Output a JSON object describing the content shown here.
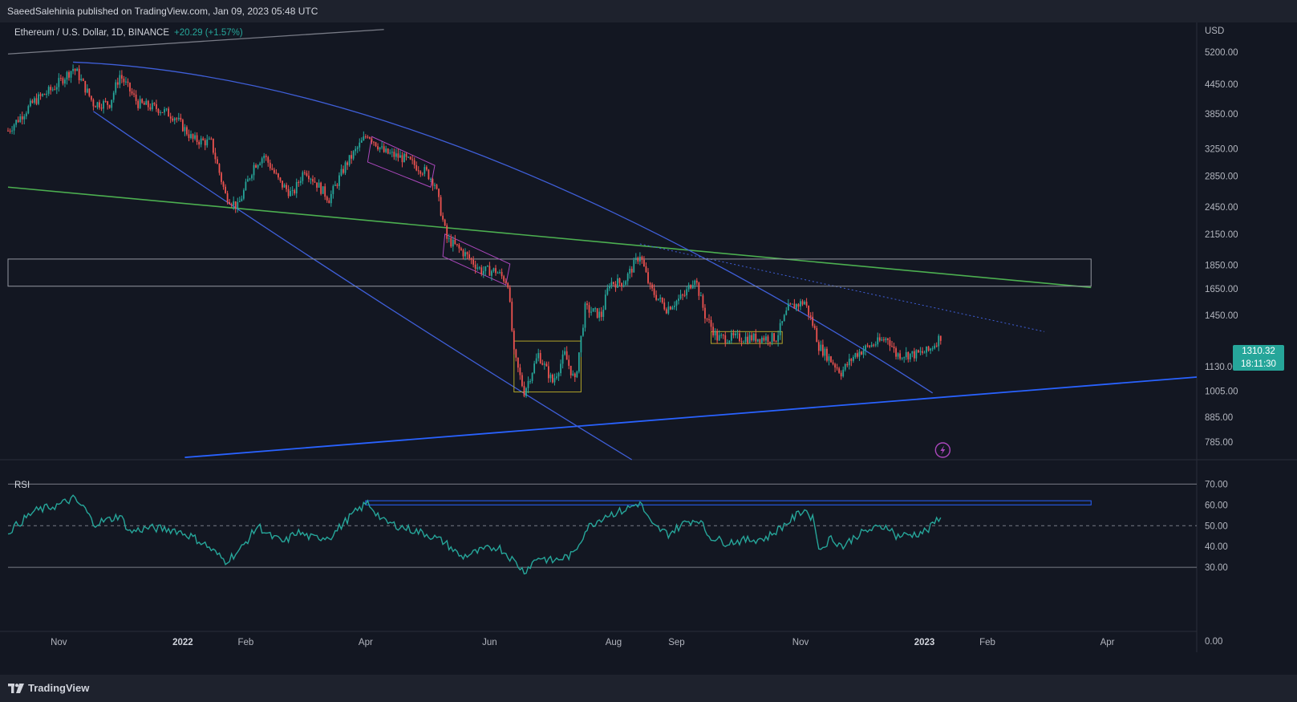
{
  "header": {
    "publisher_line": "SaeedSalehinia published on TradingView.com, Jan 09, 2023 05:48 UTC"
  },
  "legend": {
    "symbol": "Ethereum / U.S. Dollar, 1D, BINANCE",
    "change": "+20.29 (+1.57%)"
  },
  "footer": {
    "brand": "TradingView"
  },
  "price_tag": {
    "price": "1310.32",
    "countdown": "18:11:30"
  },
  "colors": {
    "background": "#131722",
    "up": "#26a69a",
    "down": "#ef5350",
    "rsi": "#26a69a",
    "accent_blue": "#2962ff",
    "green_line": "#4caf50"
  },
  "icons": [
    "lightning-icon",
    "tradingview-logo-icon"
  ],
  "chart_data": [
    {
      "type": "candlestick",
      "title": "Ethereum / U.S. Dollar, 1D, BINANCE",
      "ylabel": "USD",
      "y_scale": "log",
      "ylim": [
        720,
        6000
      ],
      "y_ticks": [
        "5200.00",
        "4450.00",
        "3850.00",
        "3250.00",
        "2850.00",
        "2450.00",
        "2150.00",
        "1850.00",
        "1650.00",
        "1450.00",
        "1130.00",
        "1005.00",
        "885.00",
        "785.00"
      ],
      "x_ticks": [
        {
          "label": "Nov",
          "date": "2021-11-01",
          "bold": false
        },
        {
          "label": "2022",
          "date": "2022-01-01",
          "bold": true
        },
        {
          "label": "Feb",
          "date": "2022-02-01",
          "bold": false
        },
        {
          "label": "Apr",
          "date": "2022-04-01",
          "bold": false
        },
        {
          "label": "Jun",
          "date": "2022-06-01",
          "bold": false
        },
        {
          "label": "Aug",
          "date": "2022-08-01",
          "bold": false
        },
        {
          "label": "Sep",
          "date": "2022-09-01",
          "bold": false
        },
        {
          "label": "Nov",
          "date": "2022-11-01",
          "bold": false
        },
        {
          "label": "2023",
          "date": "2023-01-01",
          "bold": true
        },
        {
          "label": "Feb",
          "date": "2023-02-01",
          "bold": false
        },
        {
          "label": "Apr",
          "date": "2023-04-01",
          "bold": false
        }
      ],
      "x_range": [
        "2021-10-07",
        "2023-05-15"
      ],
      "close_series": [
        {
          "date": "2021-10-07",
          "close": 3550
        },
        {
          "date": "2021-10-20",
          "close": 4100
        },
        {
          "date": "2021-10-29",
          "close": 4350
        },
        {
          "date": "2021-11-08",
          "close": 4800
        },
        {
          "date": "2021-11-10",
          "close": 4700
        },
        {
          "date": "2021-11-18",
          "close": 4050
        },
        {
          "date": "2021-11-26",
          "close": 4050
        },
        {
          "date": "2021-12-01",
          "close": 4650
        },
        {
          "date": "2021-12-10",
          "close": 4050
        },
        {
          "date": "2021-12-20",
          "close": 3950
        },
        {
          "date": "2021-12-28",
          "close": 3800
        },
        {
          "date": "2022-01-06",
          "close": 3400
        },
        {
          "date": "2022-01-15",
          "close": 3350
        },
        {
          "date": "2022-01-22",
          "close": 2600
        },
        {
          "date": "2022-01-28",
          "close": 2450
        },
        {
          "date": "2022-02-05",
          "close": 3000
        },
        {
          "date": "2022-02-10",
          "close": 3150
        },
        {
          "date": "2022-02-18",
          "close": 2750
        },
        {
          "date": "2022-02-24",
          "close": 2600
        },
        {
          "date": "2022-03-02",
          "close": 2950
        },
        {
          "date": "2022-03-14",
          "close": 2550
        },
        {
          "date": "2022-03-22",
          "close": 3000
        },
        {
          "date": "2022-04-02",
          "close": 3500
        },
        {
          "date": "2022-04-10",
          "close": 3200
        },
        {
          "date": "2022-04-20",
          "close": 3100
        },
        {
          "date": "2022-05-01",
          "close": 2900
        },
        {
          "date": "2022-05-05",
          "close": 2750
        },
        {
          "date": "2022-05-11",
          "close": 2100
        },
        {
          "date": "2022-05-20",
          "close": 1950
        },
        {
          "date": "2022-05-28",
          "close": 1800
        },
        {
          "date": "2022-06-04",
          "close": 1800
        },
        {
          "date": "2022-06-10",
          "close": 1700
        },
        {
          "date": "2022-06-13",
          "close": 1200
        },
        {
          "date": "2022-06-18",
          "close": 1000
        },
        {
          "date": "2022-06-25",
          "close": 1200
        },
        {
          "date": "2022-07-02",
          "close": 1050
        },
        {
          "date": "2022-07-08",
          "close": 1200
        },
        {
          "date": "2022-07-13",
          "close": 1050
        },
        {
          "date": "2022-07-18",
          "close": 1500
        },
        {
          "date": "2022-07-26",
          "close": 1450
        },
        {
          "date": "2022-07-30",
          "close": 1700
        },
        {
          "date": "2022-08-06",
          "close": 1700
        },
        {
          "date": "2022-08-14",
          "close": 1950
        },
        {
          "date": "2022-08-19",
          "close": 1650
        },
        {
          "date": "2022-08-27",
          "close": 1500
        },
        {
          "date": "2022-09-05",
          "close": 1600
        },
        {
          "date": "2022-09-10",
          "close": 1750
        },
        {
          "date": "2022-09-15",
          "close": 1450
        },
        {
          "date": "2022-09-21",
          "close": 1300
        },
        {
          "date": "2022-10-01",
          "close": 1300
        },
        {
          "date": "2022-10-10",
          "close": 1300
        },
        {
          "date": "2022-10-20",
          "close": 1300
        },
        {
          "date": "2022-10-26",
          "close": 1500
        },
        {
          "date": "2022-11-03",
          "close": 1550
        },
        {
          "date": "2022-11-08",
          "close": 1350
        },
        {
          "date": "2022-11-10",
          "close": 1250
        },
        {
          "date": "2022-11-21",
          "close": 1100
        },
        {
          "date": "2022-11-28",
          "close": 1200
        },
        {
          "date": "2022-12-05",
          "close": 1250
        },
        {
          "date": "2022-12-14",
          "close": 1300
        },
        {
          "date": "2022-12-18",
          "close": 1200
        },
        {
          "date": "2022-12-28",
          "close": 1200
        },
        {
          "date": "2023-01-03",
          "close": 1220
        },
        {
          "date": "2023-01-09",
          "close": 1310
        }
      ],
      "last_price": 1310.32
    },
    {
      "type": "line",
      "title": "RSI",
      "ylim": [
        0,
        74
      ],
      "y_ticks": [
        "70.00",
        "60.00",
        "50.00",
        "40.00",
        "30.00",
        "0.00"
      ],
      "bands": {
        "upper": 70,
        "middle": 50,
        "lower": 30
      },
      "series": [
        {
          "points": [
            {
              "date": "2021-10-07",
              "value": 47
            },
            {
              "date": "2021-10-20",
              "value": 57
            },
            {
              "date": "2021-11-01",
              "value": 60
            },
            {
              "date": "2021-11-08",
              "value": 63
            },
            {
              "date": "2021-11-14",
              "value": 58
            },
            {
              "date": "2021-11-18",
              "value": 51
            },
            {
              "date": "2021-11-26",
              "value": 53
            },
            {
              "date": "2021-12-01",
              "value": 55
            },
            {
              "date": "2021-12-06",
              "value": 47
            },
            {
              "date": "2021-12-15",
              "value": 49
            },
            {
              "date": "2021-12-28",
              "value": 48
            },
            {
              "date": "2022-01-05",
              "value": 45
            },
            {
              "date": "2022-01-12",
              "value": 41
            },
            {
              "date": "2022-01-22",
              "value": 33
            },
            {
              "date": "2022-01-29",
              "value": 38
            },
            {
              "date": "2022-02-07",
              "value": 50
            },
            {
              "date": "2022-02-13",
              "value": 45
            },
            {
              "date": "2022-02-20",
              "value": 42
            },
            {
              "date": "2022-02-26",
              "value": 47
            },
            {
              "date": "2022-03-06",
              "value": 44
            },
            {
              "date": "2022-03-15",
              "value": 45
            },
            {
              "date": "2022-03-25",
              "value": 55
            },
            {
              "date": "2022-04-02",
              "value": 61
            },
            {
              "date": "2022-04-10",
              "value": 52
            },
            {
              "date": "2022-04-20",
              "value": 49
            },
            {
              "date": "2022-05-01",
              "value": 46
            },
            {
              "date": "2022-05-10",
              "value": 42
            },
            {
              "date": "2022-05-18",
              "value": 35
            },
            {
              "date": "2022-05-28",
              "value": 38
            },
            {
              "date": "2022-06-05",
              "value": 40
            },
            {
              "date": "2022-06-10",
              "value": 36
            },
            {
              "date": "2022-06-18",
              "value": 28
            },
            {
              "date": "2022-06-25",
              "value": 35
            },
            {
              "date": "2022-07-02",
              "value": 33
            },
            {
              "date": "2022-07-12",
              "value": 36
            },
            {
              "date": "2022-07-19",
              "value": 49
            },
            {
              "date": "2022-07-28",
              "value": 55
            },
            {
              "date": "2022-08-05",
              "value": 57
            },
            {
              "date": "2022-08-14",
              "value": 61
            },
            {
              "date": "2022-08-20",
              "value": 50
            },
            {
              "date": "2022-08-28",
              "value": 46
            },
            {
              "date": "2022-09-06",
              "value": 52
            },
            {
              "date": "2022-09-12",
              "value": 53
            },
            {
              "date": "2022-09-17",
              "value": 45
            },
            {
              "date": "2022-09-25",
              "value": 42
            },
            {
              "date": "2022-10-05",
              "value": 43
            },
            {
              "date": "2022-10-15",
              "value": 44
            },
            {
              "date": "2022-10-25",
              "value": 51
            },
            {
              "date": "2022-11-03",
              "value": 58
            },
            {
              "date": "2022-11-08",
              "value": 52
            },
            {
              "date": "2022-11-10",
              "value": 38
            },
            {
              "date": "2022-11-16",
              "value": 44
            },
            {
              "date": "2022-11-22",
              "value": 40
            },
            {
              "date": "2022-11-28",
              "value": 45
            },
            {
              "date": "2022-12-05",
              "value": 48
            },
            {
              "date": "2022-12-14",
              "value": 50
            },
            {
              "date": "2022-12-18",
              "value": 45
            },
            {
              "date": "2022-12-28",
              "value": 46
            },
            {
              "date": "2023-01-03",
              "value": 48
            },
            {
              "date": "2023-01-09",
              "value": 55
            }
          ]
        }
      ]
    }
  ]
}
